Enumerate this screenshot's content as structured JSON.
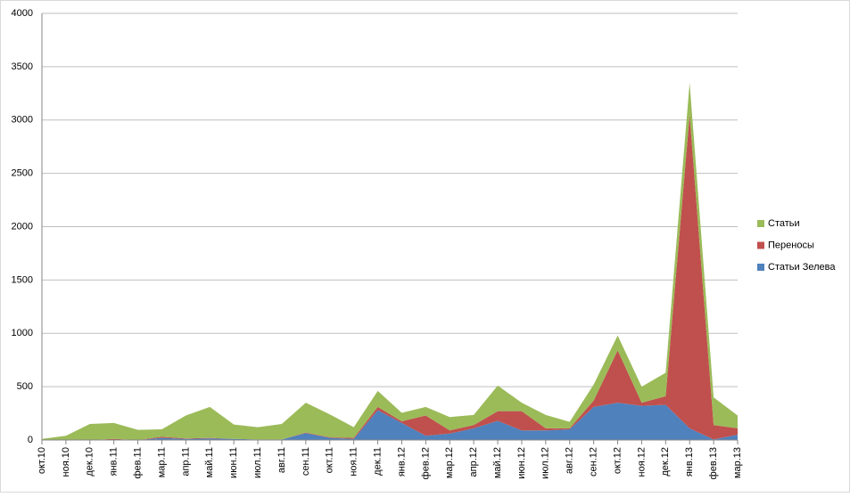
{
  "chart_data": {
    "type": "stacked-area",
    "categories": [
      "окт.10",
      "ноя.10",
      "дек.10",
      "янв.11",
      "фев.11",
      "мар.11",
      "апр.11",
      "май.11",
      "июн.11",
      "июл.11",
      "авг.11",
      "сен.11",
      "окт.11",
      "ноя.11",
      "дек.11",
      "янв.12",
      "фев.12",
      "мар.12",
      "апр.12",
      "май.12",
      "июн.12",
      "июл.12",
      "авг.12",
      "сен.12",
      "окт.12",
      "ноя.12",
      "дек.12",
      "янв.13",
      "фев.13",
      "мар.13"
    ],
    "series": [
      {
        "name": "Статьи Зелева",
        "color": "#4f81bd",
        "values": [
          0,
          0,
          0,
          0,
          0,
          20,
          10,
          15,
          10,
          5,
          5,
          65,
          20,
          10,
          280,
          160,
          40,
          60,
          110,
          180,
          90,
          90,
          100,
          310,
          350,
          320,
          330,
          110,
          5,
          50
        ]
      },
      {
        "name": "Переносы",
        "color": "#c0504d",
        "values": [
          0,
          0,
          0,
          10,
          0,
          10,
          5,
          5,
          0,
          0,
          0,
          5,
          5,
          10,
          30,
          15,
          190,
          30,
          30,
          90,
          180,
          20,
          10,
          60,
          490,
          30,
          80,
          2940,
          135,
          60
        ]
      },
      {
        "name": "Статьи",
        "color": "#9bbb59",
        "values": [
          10,
          40,
          150,
          150,
          95,
          70,
          215,
          290,
          135,
          115,
          145,
          280,
          215,
          100,
          150,
          80,
          80,
          125,
          95,
          240,
          80,
          125,
          60,
          150,
          140,
          150,
          220,
          300,
          260,
          120
        ]
      }
    ],
    "ylim": [
      0,
      4000
    ],
    "yticks": [
      0,
      500,
      1000,
      1500,
      2000,
      2500,
      3000,
      3500,
      4000
    ],
    "grid": true,
    "legend": "right"
  }
}
